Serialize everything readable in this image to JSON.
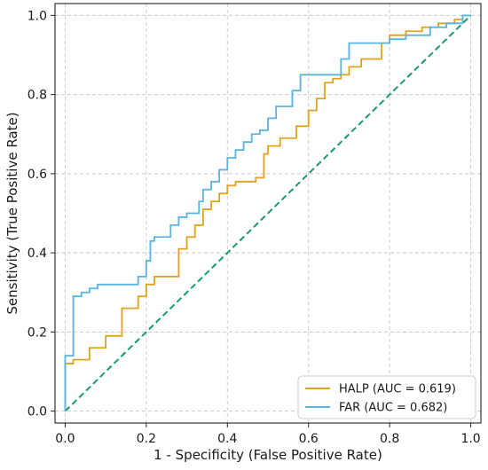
{
  "chart_data": {
    "type": "line",
    "xlabel": "1 - Specificity (False Positive Rate)",
    "ylabel": "Sensitivity (True Positive Rate)",
    "xlim": [
      -0.025,
      1.025
    ],
    "ylim": [
      -0.03,
      1.03
    ],
    "xticks": [
      "0.0",
      "0.2",
      "0.4",
      "0.6",
      "0.8",
      "1.0"
    ],
    "yticks": [
      "0.0",
      "0.2",
      "0.4",
      "0.6",
      "0.8",
      "1.0"
    ],
    "grid": true,
    "legend_position": "bottom-right",
    "colors": {
      "HALP": "#e0a31f",
      "FAR": "#5ab4e0",
      "reference": "#1a9a6a"
    },
    "reference_line": {
      "style": "dashed",
      "from": [
        0,
        0
      ],
      "to": [
        1,
        1
      ]
    },
    "series": [
      {
        "name": "HALP (AUC = 0.619)",
        "key": "HALP",
        "points": [
          [
            0,
            0
          ],
          [
            0,
            0.12
          ],
          [
            0.02,
            0.12
          ],
          [
            0.02,
            0.13
          ],
          [
            0.06,
            0.13
          ],
          [
            0.06,
            0.16
          ],
          [
            0.1,
            0.16
          ],
          [
            0.1,
            0.19
          ],
          [
            0.14,
            0.19
          ],
          [
            0.14,
            0.26
          ],
          [
            0.18,
            0.26
          ],
          [
            0.18,
            0.29
          ],
          [
            0.2,
            0.29
          ],
          [
            0.2,
            0.32
          ],
          [
            0.22,
            0.32
          ],
          [
            0.22,
            0.34
          ],
          [
            0.28,
            0.34
          ],
          [
            0.28,
            0.41
          ],
          [
            0.3,
            0.41
          ],
          [
            0.3,
            0.44
          ],
          [
            0.32,
            0.44
          ],
          [
            0.32,
            0.47
          ],
          [
            0.34,
            0.47
          ],
          [
            0.34,
            0.51
          ],
          [
            0.36,
            0.51
          ],
          [
            0.36,
            0.53
          ],
          [
            0.38,
            0.53
          ],
          [
            0.38,
            0.55
          ],
          [
            0.4,
            0.55
          ],
          [
            0.4,
            0.57
          ],
          [
            0.42,
            0.57
          ],
          [
            0.42,
            0.58
          ],
          [
            0.47,
            0.58
          ],
          [
            0.47,
            0.59
          ],
          [
            0.49,
            0.59
          ],
          [
            0.49,
            0.65
          ],
          [
            0.5,
            0.65
          ],
          [
            0.5,
            0.67
          ],
          [
            0.53,
            0.67
          ],
          [
            0.53,
            0.69
          ],
          [
            0.57,
            0.69
          ],
          [
            0.57,
            0.72
          ],
          [
            0.6,
            0.72
          ],
          [
            0.6,
            0.76
          ],
          [
            0.62,
            0.76
          ],
          [
            0.62,
            0.79
          ],
          [
            0.64,
            0.79
          ],
          [
            0.64,
            0.83
          ],
          [
            0.66,
            0.83
          ],
          [
            0.66,
            0.84
          ],
          [
            0.68,
            0.84
          ],
          [
            0.68,
            0.85
          ],
          [
            0.7,
            0.85
          ],
          [
            0.7,
            0.87
          ],
          [
            0.73,
            0.87
          ],
          [
            0.73,
            0.89
          ],
          [
            0.78,
            0.89
          ],
          [
            0.78,
            0.93
          ],
          [
            0.8,
            0.93
          ],
          [
            0.8,
            0.95
          ],
          [
            0.84,
            0.95
          ],
          [
            0.84,
            0.96
          ],
          [
            0.88,
            0.96
          ],
          [
            0.88,
            0.97
          ],
          [
            0.92,
            0.97
          ],
          [
            0.92,
            0.98
          ],
          [
            0.96,
            0.98
          ],
          [
            0.96,
            0.99
          ],
          [
            0.98,
            0.99
          ],
          [
            0.98,
            1.0
          ],
          [
            1.0,
            1.0
          ]
        ]
      },
      {
        "name": "FAR (AUC = 0.682)",
        "key": "FAR",
        "points": [
          [
            0,
            0
          ],
          [
            0,
            0.14
          ],
          [
            0.02,
            0.14
          ],
          [
            0.02,
            0.29
          ],
          [
            0.04,
            0.29
          ],
          [
            0.04,
            0.3
          ],
          [
            0.06,
            0.3
          ],
          [
            0.06,
            0.31
          ],
          [
            0.08,
            0.31
          ],
          [
            0.08,
            0.32
          ],
          [
            0.18,
            0.32
          ],
          [
            0.18,
            0.34
          ],
          [
            0.2,
            0.34
          ],
          [
            0.2,
            0.38
          ],
          [
            0.21,
            0.38
          ],
          [
            0.21,
            0.43
          ],
          [
            0.22,
            0.43
          ],
          [
            0.22,
            0.44
          ],
          [
            0.26,
            0.44
          ],
          [
            0.26,
            0.47
          ],
          [
            0.28,
            0.47
          ],
          [
            0.28,
            0.49
          ],
          [
            0.3,
            0.49
          ],
          [
            0.3,
            0.5
          ],
          [
            0.33,
            0.5
          ],
          [
            0.33,
            0.53
          ],
          [
            0.34,
            0.53
          ],
          [
            0.34,
            0.56
          ],
          [
            0.36,
            0.56
          ],
          [
            0.36,
            0.58
          ],
          [
            0.38,
            0.58
          ],
          [
            0.38,
            0.61
          ],
          [
            0.4,
            0.61
          ],
          [
            0.4,
            0.64
          ],
          [
            0.42,
            0.64
          ],
          [
            0.42,
            0.66
          ],
          [
            0.44,
            0.66
          ],
          [
            0.44,
            0.68
          ],
          [
            0.46,
            0.68
          ],
          [
            0.46,
            0.7
          ],
          [
            0.48,
            0.7
          ],
          [
            0.48,
            0.71
          ],
          [
            0.5,
            0.71
          ],
          [
            0.5,
            0.74
          ],
          [
            0.52,
            0.74
          ],
          [
            0.52,
            0.77
          ],
          [
            0.56,
            0.77
          ],
          [
            0.56,
            0.81
          ],
          [
            0.58,
            0.81
          ],
          [
            0.58,
            0.85
          ],
          [
            0.68,
            0.85
          ],
          [
            0.68,
            0.89
          ],
          [
            0.7,
            0.89
          ],
          [
            0.7,
            0.93
          ],
          [
            0.8,
            0.93
          ],
          [
            0.8,
            0.94
          ],
          [
            0.84,
            0.94
          ],
          [
            0.84,
            0.95
          ],
          [
            0.9,
            0.95
          ],
          [
            0.9,
            0.97
          ],
          [
            0.94,
            0.97
          ],
          [
            0.94,
            0.98
          ],
          [
            0.98,
            0.98
          ],
          [
            0.98,
            1.0
          ],
          [
            1.0,
            1.0
          ]
        ]
      }
    ]
  }
}
